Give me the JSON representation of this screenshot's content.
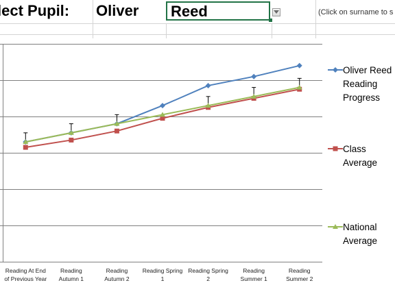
{
  "header": {
    "select_label": "lect Pupil:",
    "first_name": "Oliver",
    "surname": "Reed",
    "hint": "(Click on surname to s"
  },
  "colors": {
    "accent": "#217346",
    "pupil": "#4f81bd",
    "class": "#c0504d",
    "national": "#9bbb59"
  },
  "icons": {
    "dropdown": "chevron-down-icon"
  },
  "chart_data": {
    "type": "line",
    "categories": [
      [
        "Reading At End",
        "of Previous Year"
      ],
      [
        "Reading",
        "Autumn 1"
      ],
      [
        "Reading",
        "Autumn 2"
      ],
      [
        "Reading Spring",
        "1"
      ],
      [
        "Reading Spring",
        "2"
      ],
      [
        "Reading",
        "Summer 1"
      ],
      [
        "Reading",
        "Summer 2"
      ]
    ],
    "ylim": [
      0,
      6
    ],
    "grid": true,
    "legend": "right",
    "series": [
      {
        "name": [
          "Oliver Reed",
          "Reading",
          "Progress"
        ],
        "color": "#4f81bd",
        "marker": "diamond",
        "values": [
          3.3,
          3.55,
          3.8,
          4.3,
          4.85,
          5.1,
          5.4
        ]
      },
      {
        "name": [
          "Class",
          "Average"
        ],
        "color": "#c0504d",
        "marker": "square",
        "values": [
          3.15,
          3.35,
          3.6,
          3.95,
          4.25,
          4.5,
          4.75
        ]
      },
      {
        "name": [
          "National",
          "Average"
        ],
        "color": "#9bbb59",
        "marker": "triangle",
        "values": [
          3.3,
          3.55,
          3.8,
          4.05,
          4.3,
          4.55,
          4.8
        ],
        "error_plus": [
          0.25,
          0.25,
          0.25,
          0.0,
          0.25,
          0.25,
          0.25
        ]
      }
    ]
  }
}
